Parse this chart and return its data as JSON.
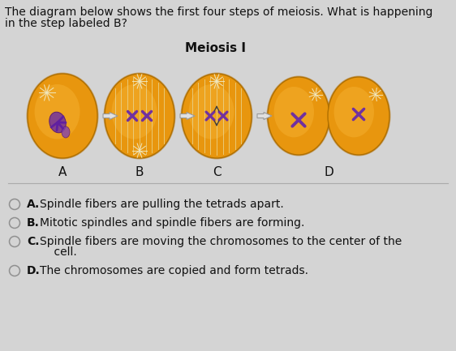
{
  "title_line1": "The diagram below shows the first four steps of meiosis. What is happening",
  "title_line2": "in the step labeled B?",
  "meiosis_label": "Meiosis I",
  "step_labels": [
    "A",
    "B",
    "C",
    "D"
  ],
  "options": [
    {
      "letter": "A",
      "bold": true,
      "text": "Spindle fibers are pulling the tetrads apart."
    },
    {
      "letter": "B",
      "bold": true,
      "text": "Mitotic spindles and spindle fibers are forming."
    },
    {
      "letter": "C",
      "bold": true,
      "text": "Spindle fibers are moving the chromosomes to the center of the"
    },
    {
      "letter": "C2",
      "bold": false,
      "text": "cell."
    },
    {
      "letter": "D",
      "bold": true,
      "text": "The chromosomes are copied and form tetrads."
    }
  ],
  "bg_color": "#d4d4d4",
  "cell_orange": "#e8960e",
  "cell_orange_light": "#f5b030",
  "cell_orange_dark": "#c07808",
  "spindle_color": "#e8d898",
  "chrom_color": "#7030a0",
  "arrow_color": "#c8c8c8",
  "title_fontsize": 10,
  "label_fontsize": 11,
  "option_fontsize": 10,
  "meiosis_fontsize": 11
}
